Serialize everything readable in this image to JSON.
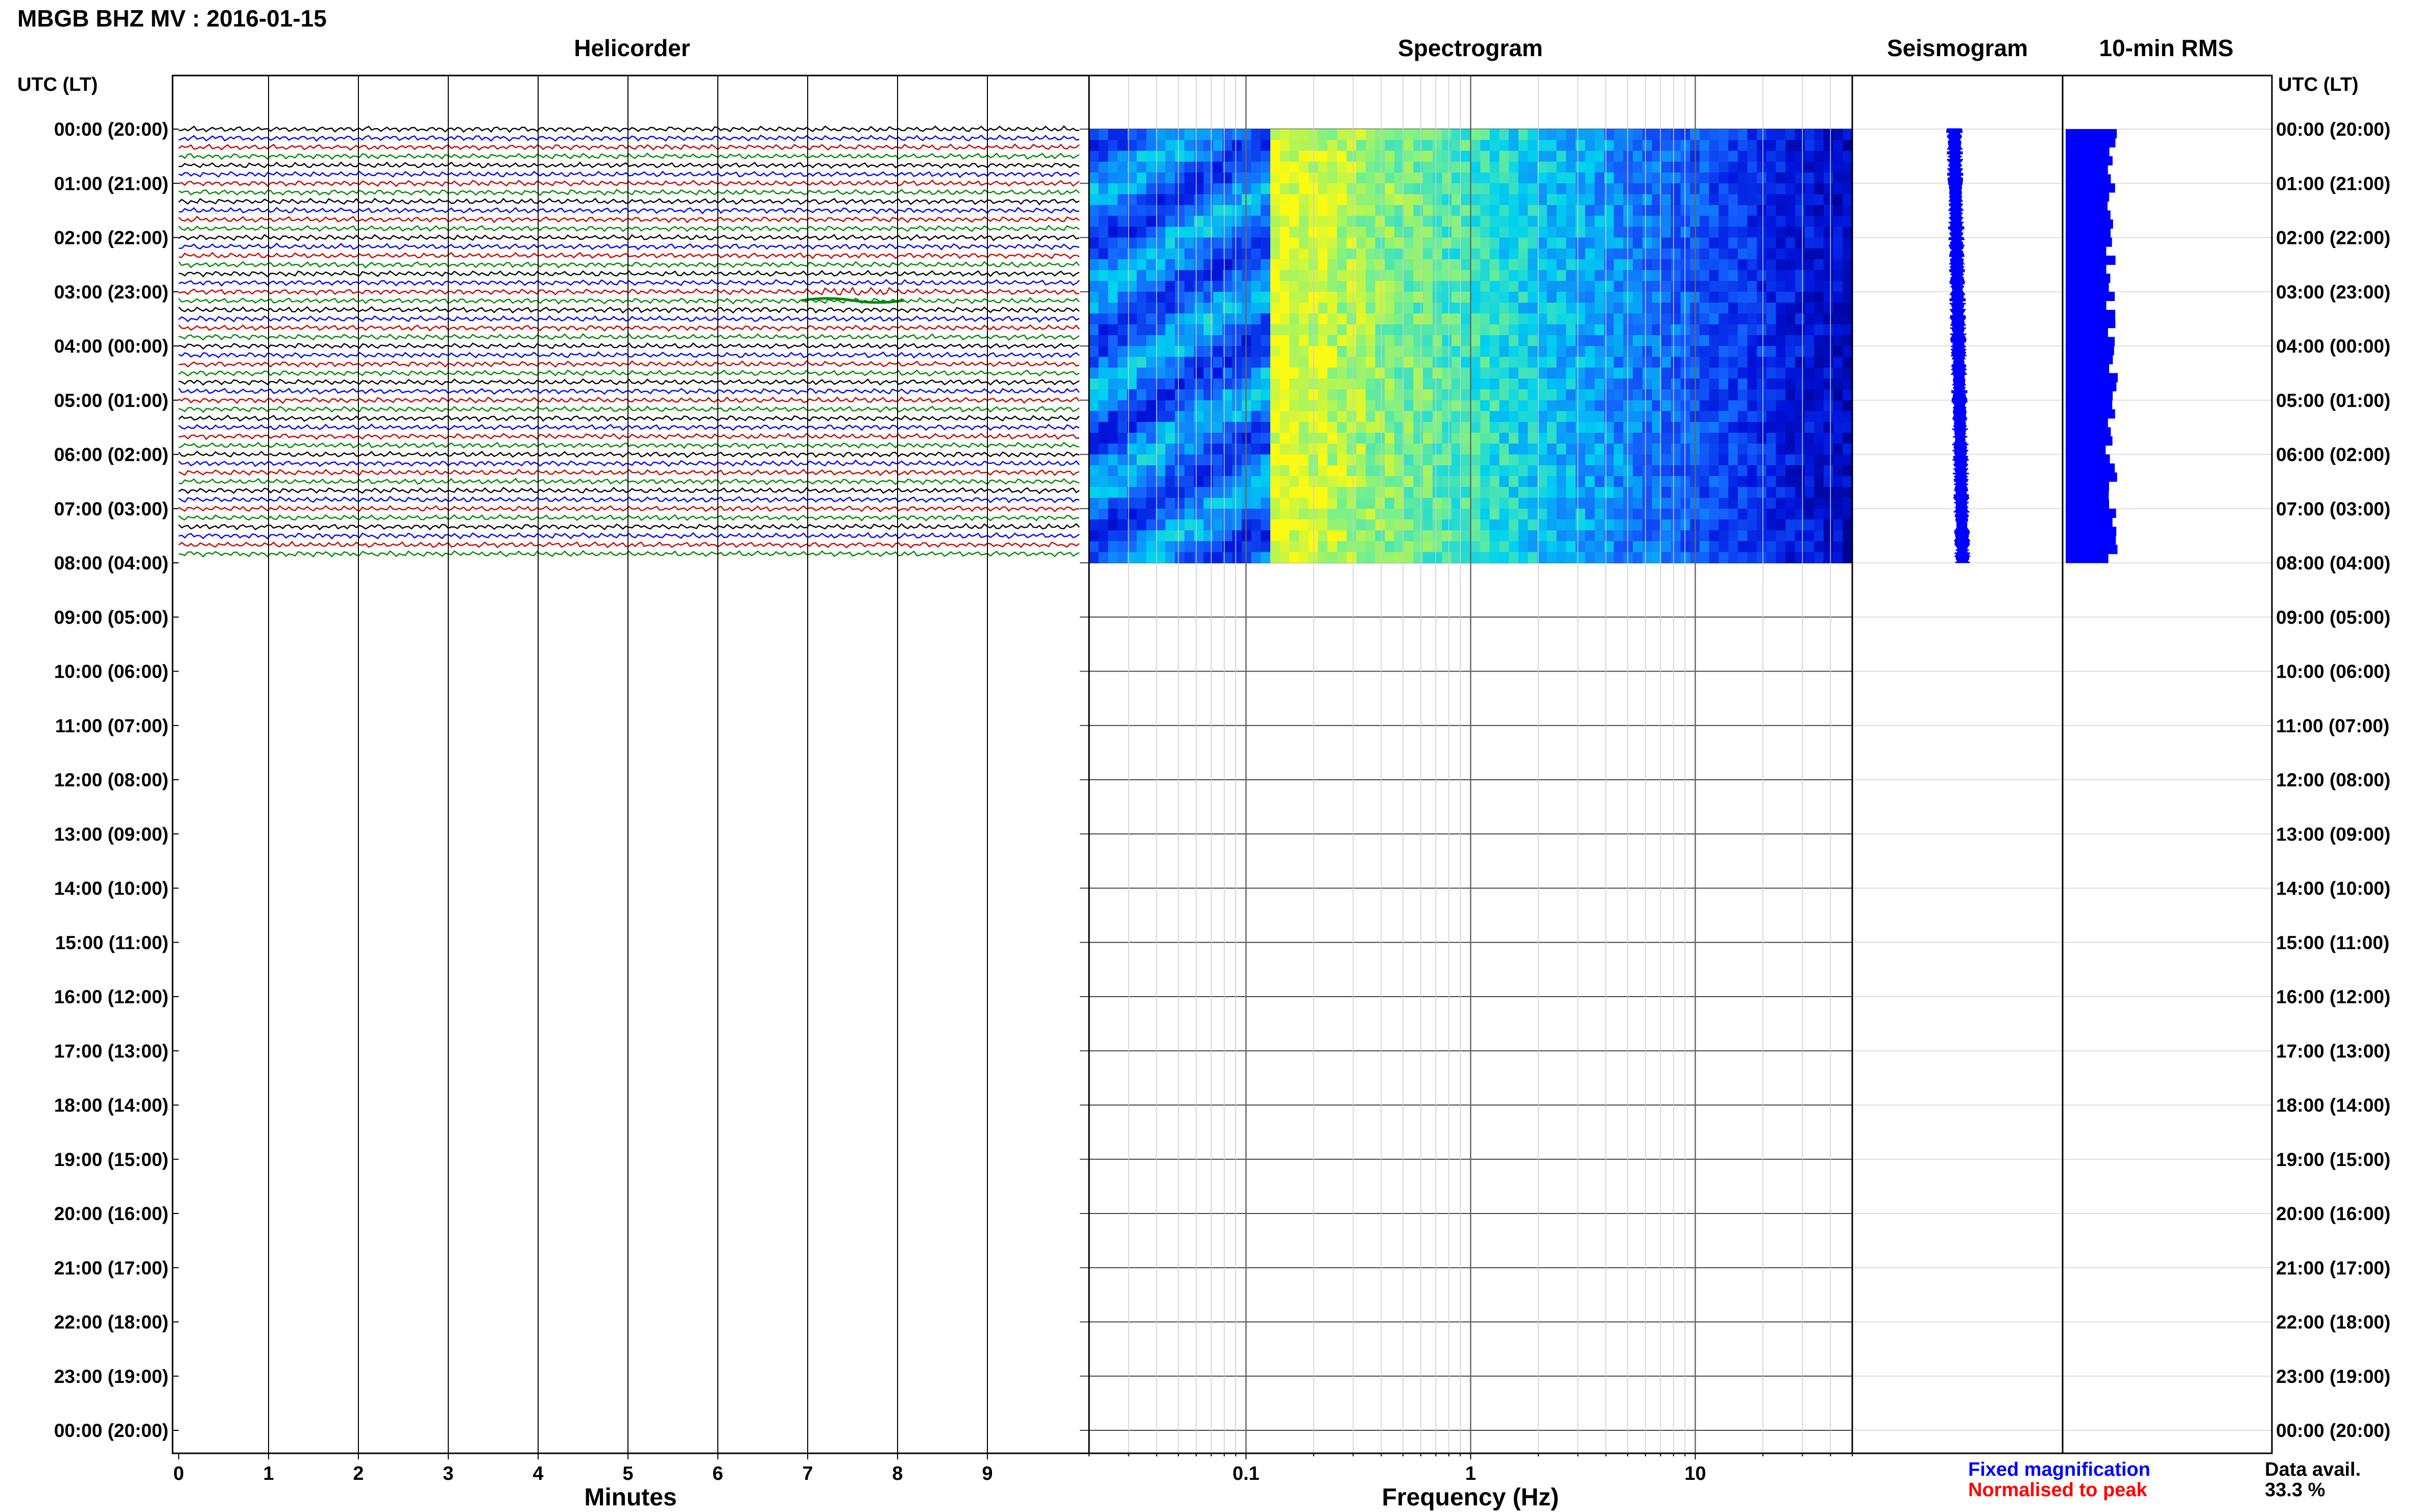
{
  "header": {
    "title": "MBGB BHZ MV : 2016-01-15",
    "utc_label": "UTC (LT)"
  },
  "panels": {
    "helicorder": "Helicorder",
    "spectrogram": "Spectrogram",
    "seismogram": "Seismogram",
    "rms": "10-min RMS"
  },
  "hour_labels": [
    "00:00 (20:00)",
    "01:00 (21:00)",
    "02:00 (22:00)",
    "03:00 (23:00)",
    "04:00 (00:00)",
    "05:00 (01:00)",
    "06:00 (02:00)",
    "07:00 (03:00)",
    "08:00 (04:00)",
    "09:00 (05:00)",
    "10:00 (06:00)",
    "11:00 (07:00)",
    "12:00 (08:00)",
    "13:00 (09:00)",
    "14:00 (10:00)",
    "15:00 (11:00)",
    "16:00 (12:00)",
    "17:00 (13:00)",
    "18:00 (14:00)",
    "19:00 (15:00)",
    "20:00 (16:00)",
    "21:00 (17:00)",
    "22:00 (18:00)",
    "23:00 (19:00)",
    "00:00 (20:00)"
  ],
  "helicorder_x": {
    "label": "Minutes",
    "ticks": [
      0,
      1,
      2,
      3,
      4,
      5,
      6,
      7,
      8,
      9
    ],
    "range": [
      0,
      10
    ]
  },
  "spectrogram_x": {
    "label": "Frequency (Hz)",
    "scale": "log",
    "ticks": [
      0.1,
      1,
      10
    ],
    "range": [
      0.02,
      50
    ]
  },
  "legend": {
    "fixed": "Fixed magnification",
    "normalised": "Normalised to peak",
    "fixed_color": "#0000ff",
    "normalised_color": "#ff0000"
  },
  "availability": {
    "label": "Data avail.",
    "value": "33.3 %"
  },
  "colors": {
    "trace_cycle": [
      "#000000",
      "#0000ff",
      "#cc0000",
      "#008800"
    ],
    "seismogram": "#0000ff",
    "rms": "#0000ff"
  },
  "chart_data": {
    "type": "heatmap",
    "title": "MBGB BHZ MV : 2016-01-15",
    "data_hours": 8,
    "total_hours": 24,
    "traces_per_hour": 6,
    "helicorder_event": {
      "hour": 3,
      "minute": 7.5
    },
    "spectrogram_peak_hz": 0.15
  }
}
